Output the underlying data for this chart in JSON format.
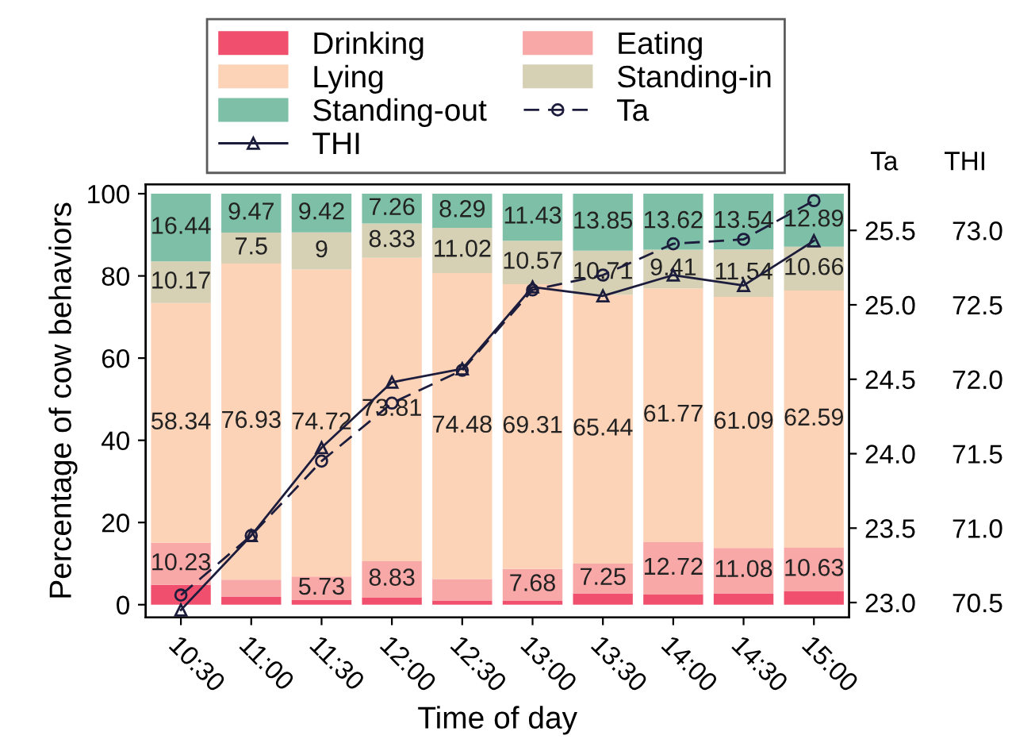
{
  "chart_data": {
    "type": "bar",
    "stacked": true,
    "xlabel": "Time of day",
    "ylabel": "Percentage of cow behaviors",
    "y2label": "Ta",
    "y3label": "THI",
    "categories": [
      "10:30",
      "11:00",
      "11:30",
      "12:00",
      "12:30",
      "13:00",
      "13:30",
      "14:00",
      "14:30",
      "15:00"
    ],
    "series": [
      {
        "name": "Drinking",
        "color": "#f0506e",
        "values": [
          4.82,
          2.0,
          1.13,
          1.77,
          1.0,
          1.01,
          2.75,
          2.48,
          2.75,
          3.23
        ]
      },
      {
        "name": "Eating",
        "color": "#f9a8a8",
        "values": [
          10.23,
          4.1,
          5.73,
          8.83,
          5.21,
          7.68,
          7.25,
          12.72,
          11.08,
          10.63
        ],
        "value_labels": [
          "10.23",
          null,
          "5.73",
          "8.83",
          null,
          "7.68",
          "7.25",
          "12.72",
          "11.08",
          "10.63"
        ]
      },
      {
        "name": "Lying",
        "color": "#fdd3b8",
        "values": [
          58.34,
          76.93,
          74.72,
          73.81,
          74.48,
          69.31,
          65.44,
          61.77,
          61.09,
          62.59
        ],
        "value_labels": [
          "58.34",
          "76.93",
          "74.72",
          "73.81",
          "74.48",
          "69.31",
          "65.44",
          "61.77",
          "61.09",
          "62.59"
        ]
      },
      {
        "name": "Standing-in",
        "color": "#d6d0b4",
        "values": [
          10.17,
          7.5,
          9,
          8.33,
          11.02,
          10.57,
          10.71,
          9.41,
          11.54,
          10.66
        ],
        "value_labels": [
          "10.17",
          "7.5",
          "9",
          "8.33",
          "11.02",
          "10.57",
          "10.71",
          "9.41",
          "11.54",
          "10.66"
        ]
      },
      {
        "name": "Standing-out",
        "color": "#7ebfa8",
        "values": [
          16.44,
          9.47,
          9.42,
          7.26,
          8.29,
          11.43,
          13.85,
          13.62,
          13.54,
          12.89
        ],
        "value_labels": [
          "16.44",
          "9.47",
          "9.42",
          "7.26",
          "8.29",
          "11.43",
          "13.85",
          "13.62",
          "13.54",
          "12.89"
        ]
      },
      {
        "name": "Ta",
        "type": "line",
        "axis": "y2",
        "color": "#1c1c3c",
        "marker": "circle",
        "line_style": "dashed",
        "values": [
          23.05,
          23.45,
          23.95,
          24.34,
          24.56,
          25.1,
          25.2,
          25.41,
          25.44,
          25.7
        ]
      },
      {
        "name": "THI",
        "type": "line",
        "axis": "y3",
        "color": "#1c1c3c",
        "marker": "triangle",
        "line_style": "solid",
        "values": [
          70.45,
          70.95,
          71.54,
          71.98,
          72.07,
          72.62,
          72.56,
          72.7,
          72.63,
          72.93
        ]
      }
    ],
    "ylim": [
      -3.1,
      102.3
    ],
    "yticks": [
      0,
      20,
      40,
      60,
      80,
      100
    ],
    "y2lim": [
      22.9,
      25.81
    ],
    "y2ticks": [
      {
        "value": 23,
        "label": "23.0"
      },
      23.5,
      {
        "value": 24,
        "label": "24.0"
      },
      24.5,
      {
        "value": 25,
        "label": "25.0"
      },
      25.5
    ],
    "y3lim": [
      70.4,
      73.31
    ],
    "y3ticks": [
      70.5,
      {
        "value": 71,
        "label": "71.0"
      },
      71.5,
      {
        "value": 72,
        "label": "72.0"
      },
      72.5,
      {
        "value": 73,
        "label": "73.0"
      }
    ],
    "legend": "top",
    "grid": false
  }
}
